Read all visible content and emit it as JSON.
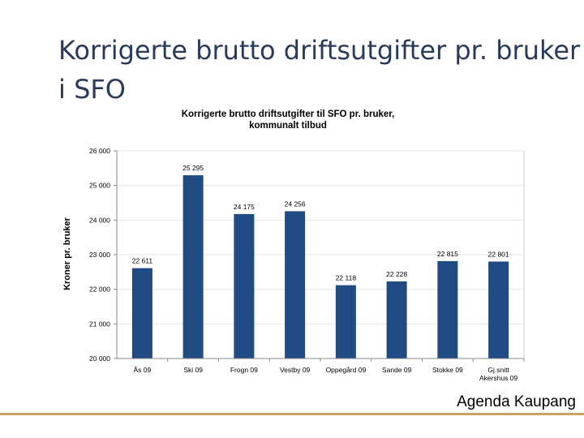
{
  "slide": {
    "title": "Korrigerte brutto driftsutgifter pr. bruker i SFO",
    "footer": "Agenda Kaupang"
  },
  "colors": {
    "bar": "#1f4a82",
    "title": "#2a3a5a",
    "footer_line": "#c9a363"
  },
  "chart_data": {
    "type": "bar",
    "title": "Korrigerte brutto driftsutgifter til SFO pr. bruker,",
    "subtitle": "kommunalt tilbud",
    "xlabel": "",
    "ylabel": "Kroner pr. bruker",
    "ylim": [
      20000,
      26000
    ],
    "yticks": [
      "20 000",
      "21 000",
      "22 000",
      "23 000",
      "24 000",
      "25 000",
      "26 000"
    ],
    "ytick_values": [
      20000,
      21000,
      22000,
      23000,
      24000,
      25000,
      26000
    ],
    "categories": [
      "Ås 09",
      "Ski 09",
      "Frogn 09",
      "Vestby 09",
      "Oppegård 09",
      "Sande 09",
      "Stokke 09",
      "Gj.snitt Akershus 09"
    ],
    "category_lines": [
      [
        "Ås 09"
      ],
      [
        "Ski 09"
      ],
      [
        "Frogn 09"
      ],
      [
        "Vestby 09"
      ],
      [
        "Oppegård 09"
      ],
      [
        "Sande 09"
      ],
      [
        "Stokke 09"
      ],
      [
        "Gj.snitt",
        "Akershus 09"
      ]
    ],
    "values": [
      22611,
      25295,
      24175,
      24256,
      22118,
      22228,
      22815,
      22801
    ],
    "value_labels": [
      "22 611",
      "25 295",
      "24 175",
      "24 256",
      "22 118",
      "22 228",
      "22 815",
      "22 801"
    ],
    "grid": true,
    "legend": "none"
  }
}
